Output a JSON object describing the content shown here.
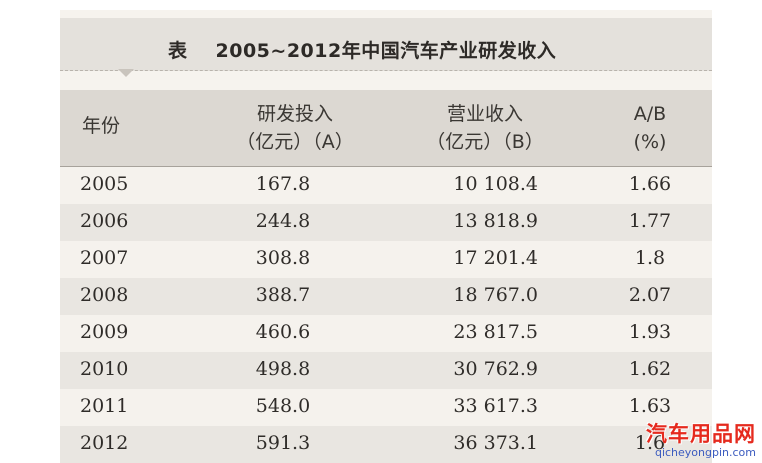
{
  "title": {
    "prefix": "表",
    "text": "2005~2012年中国汽车产业研发收入"
  },
  "table": {
    "headers": {
      "year": "年份",
      "rd_line1": "研发投入",
      "rd_line2": "（亿元）（A）",
      "rev_line1": "营业收入",
      "rev_line2": "（亿元）（B）",
      "ratio_line1": "A/B",
      "ratio_line2": "(%)"
    },
    "rows": [
      {
        "year": "2005",
        "rd": "167.8",
        "rev": "10 108.4",
        "ratio": "1.66"
      },
      {
        "year": "2006",
        "rd": "244.8",
        "rev": "13 818.9",
        "ratio": "1.77"
      },
      {
        "year": "2007",
        "rd": "308.8",
        "rev": "17 201.4",
        "ratio": "1.8"
      },
      {
        "year": "2008",
        "rd": "388.7",
        "rev": "18 767.0",
        "ratio": "2.07"
      },
      {
        "year": "2009",
        "rd": "460.6",
        "rev": "23 817.5",
        "ratio": "1.93"
      },
      {
        "year": "2010",
        "rd": "498.8",
        "rev": "30 762.9",
        "ratio": "1.62"
      },
      {
        "year": "2011",
        "rd": "548.0",
        "rev": "33 617.3",
        "ratio": "1.63"
      },
      {
        "year": "2012",
        "rd": "591.3",
        "rev": "36 373.1",
        "ratio": "1.6"
      }
    ]
  },
  "watermark": {
    "text": "汽车用品网",
    "url": "qicheyongpin.com"
  }
}
